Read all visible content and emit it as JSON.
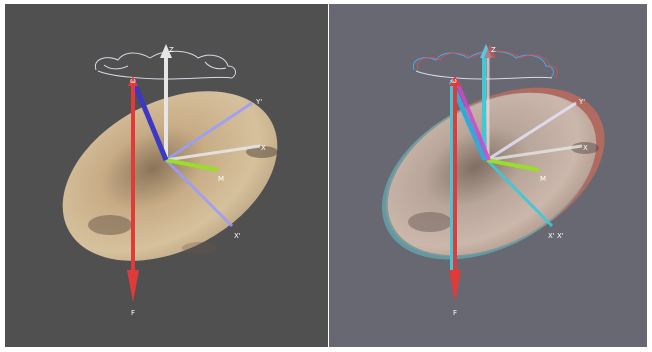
{
  "colors": {
    "left_background": "#505050",
    "right_background": "#686872",
    "page_border": "#ffffff",
    "force_arrow": "#e03a3a",
    "force_arrow_cyan_shadow": "#3ec8d8",
    "disk_fill": "#cdb591",
    "disk_shadow": "#7a6652",
    "axis_white": "#e6e6e6",
    "axis_lightblue": "#9a9cff",
    "axis_blue": "#3b37c8",
    "axis_green": "#9ade2a",
    "outline_swirl": "#d8d8e6"
  },
  "left_panel": {
    "labels": {
      "top": "Z",
      "omega": "ω",
      "y_prime": "Y'",
      "x": "X",
      "m": "M",
      "x_prime": "X'",
      "f": "F"
    }
  },
  "right_panel": {
    "labels": {
      "top": "Z",
      "omega": "ω",
      "y_prime": "Y'",
      "x": "X",
      "m": "M",
      "x_prime": "X' X'",
      "f": "F"
    }
  }
}
